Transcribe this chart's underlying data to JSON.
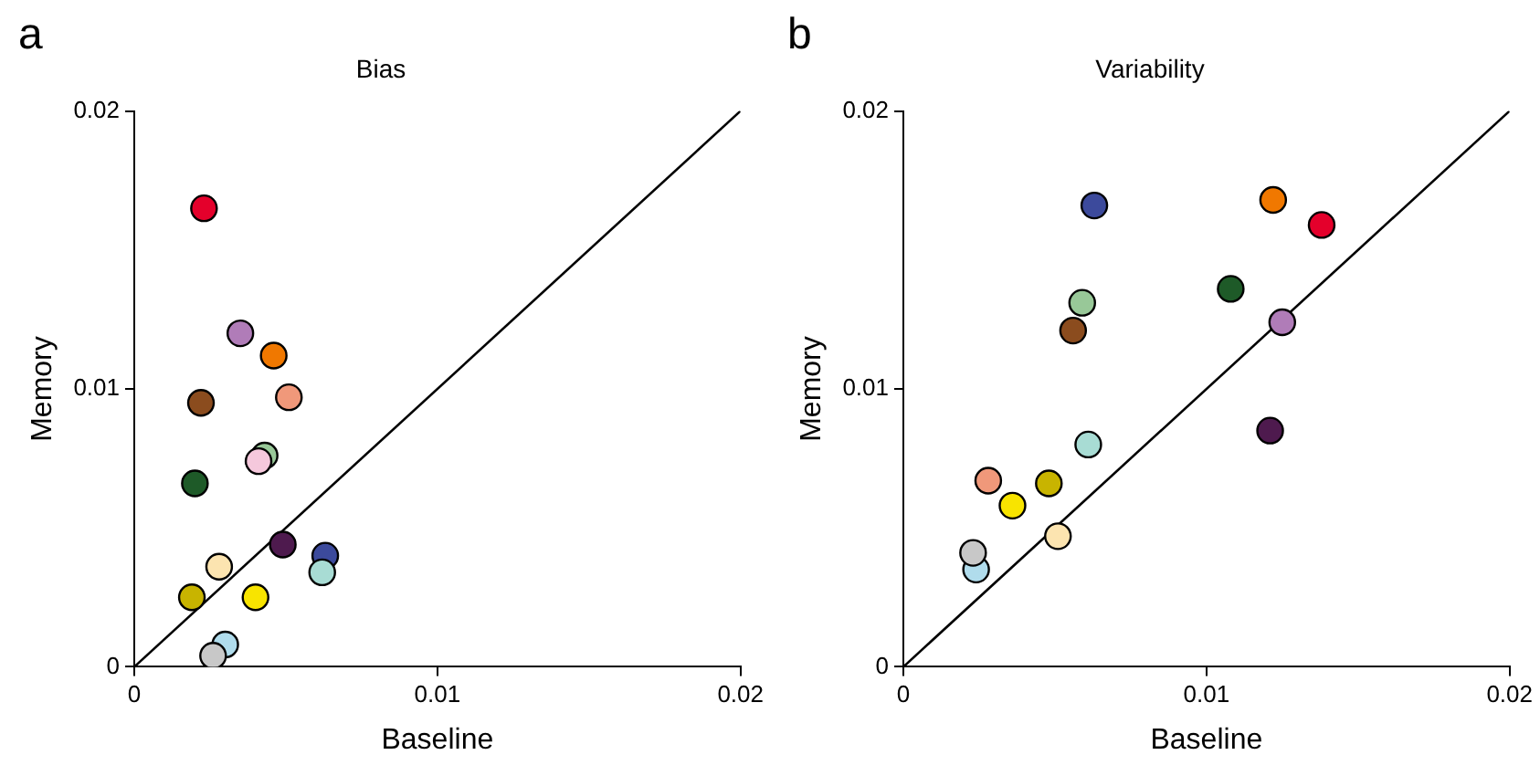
{
  "chart_data": [
    {
      "type": "scatter",
      "title": "Bias",
      "xlabel": "Baseline",
      "ylabel": "Memory",
      "annotations": [
        "a"
      ],
      "xlim": [
        0,
        0.02
      ],
      "ylim": [
        0,
        0.02
      ],
      "xticks": [
        0,
        0.01,
        0.02
      ],
      "yticks": [
        0,
        0.01,
        0.02
      ],
      "grid": false,
      "legend": false,
      "series": [
        {
          "type": "scatter",
          "marker": "circle",
          "x": [
            0.0023,
            0.0035,
            0.0046,
            0.0022,
            0.0051,
            0.0043,
            0.0041,
            0.002,
            0.0049,
            0.0063,
            0.0062,
            0.0028,
            0.0019,
            0.004,
            0.003,
            0.0026
          ],
          "values": [
            0.0165,
            0.012,
            0.0112,
            0.0095,
            0.0097,
            0.0076,
            0.0074,
            0.0066,
            0.0044,
            0.004,
            0.0034,
            0.0036,
            0.0025,
            0.0025,
            0.0008,
            0.0004
          ],
          "colors": [
            "#e4002b",
            "#b07cb8",
            "#f07800",
            "#8b4c1e",
            "#f0987a",
            "#98c898",
            "#f5c8dc",
            "#1e5a28",
            "#4e1a4e",
            "#3c4a9c",
            "#a8dcd4",
            "#fce4b0",
            "#c8b400",
            "#f8e400",
            "#b0dcec",
            "#c8c8c8"
          ]
        },
        {
          "type": "line",
          "marker": "none",
          "x": [
            0,
            0.02
          ],
          "values": [
            0,
            0.02
          ],
          "color": "#000000"
        }
      ]
    },
    {
      "type": "scatter",
      "title": "Variability",
      "xlabel": "Baseline",
      "ylabel": "Memory",
      "annotations": [
        "b"
      ],
      "xlim": [
        0,
        0.02
      ],
      "ylim": [
        0,
        0.02
      ],
      "xticks": [
        0,
        0.01,
        0.02
      ],
      "yticks": [
        0,
        0.01,
        0.02
      ],
      "grid": false,
      "legend": false,
      "series": [
        {
          "type": "scatter",
          "marker": "circle",
          "x": [
            0.0138,
            0.0125,
            0.0122,
            0.0056,
            0.0028,
            0.0059,
            null,
            0.0108,
            0.0121,
            0.0063,
            0.0061,
            0.0051,
            0.0048,
            0.0036,
            0.0024,
            0.0023
          ],
          "values": [
            0.0159,
            0.0124,
            0.0168,
            0.0121,
            0.0067,
            0.0131,
            null,
            0.0136,
            0.0085,
            0.0166,
            0.008,
            0.0047,
            0.0066,
            0.0058,
            0.0035,
            0.0041
          ],
          "colors": [
            "#e4002b",
            "#b07cb8",
            "#f07800",
            "#8b4c1e",
            "#f0987a",
            "#98c898",
            "#f5c8dc",
            "#1e5a28",
            "#4e1a4e",
            "#3c4a9c",
            "#a8dcd4",
            "#fce4b0",
            "#c8b400",
            "#f8e400",
            "#b0dcec",
            "#c8c8c8"
          ]
        },
        {
          "type": "line",
          "marker": "none",
          "x": [
            0,
            0.02
          ],
          "values": [
            0,
            0.02
          ],
          "color": "#000000"
        }
      ]
    }
  ]
}
